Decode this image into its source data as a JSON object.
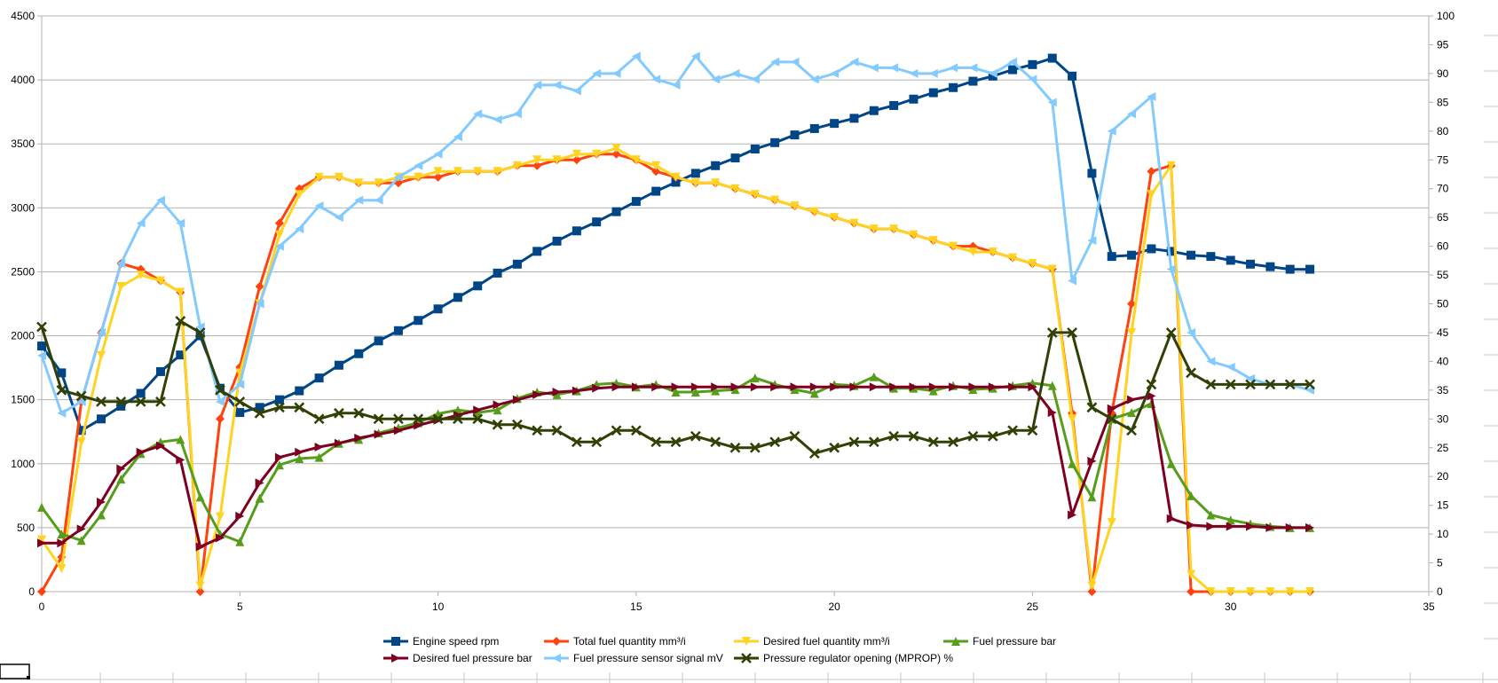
{
  "chart_data": {
    "type": "line",
    "title": "",
    "xlabel": "",
    "ylabel": "",
    "y2label": "",
    "xlim": [
      0,
      35
    ],
    "ylim": [
      0,
      4500
    ],
    "y2lim": [
      0,
      100
    ],
    "grid": true,
    "legend_position": "bottom",
    "x_ticks": [
      0,
      5,
      10,
      15,
      20,
      25,
      30,
      35
    ],
    "y_ticks": [
      0,
      500,
      1000,
      1500,
      2000,
      2500,
      3000,
      3500,
      4000,
      4500
    ],
    "y2_ticks": [
      0,
      5,
      10,
      15,
      20,
      25,
      30,
      35,
      40,
      45,
      50,
      55,
      60,
      65,
      70,
      75,
      80,
      85,
      90,
      95,
      100
    ],
    "series": [
      {
        "name": "Engine speed rpm",
        "axis": "left",
        "color": "#004586",
        "marker": "square",
        "x": [
          0,
          0.5,
          1,
          1.5,
          2,
          2.5,
          3,
          3.5,
          4,
          4.5,
          5,
          5.5,
          6,
          6.5,
          7,
          7.5,
          8,
          8.5,
          9,
          9.5,
          10,
          10.5,
          11,
          11.5,
          12,
          12.5,
          13,
          13.5,
          14,
          14.5,
          15,
          15.5,
          16,
          16.5,
          17,
          17.5,
          18,
          18.5,
          19,
          19.5,
          20,
          20.5,
          21,
          21.5,
          22,
          22.5,
          23,
          23.5,
          24,
          24.5,
          25,
          25.5,
          26,
          26.5,
          27,
          27.5,
          28,
          28.5,
          29,
          29.5,
          30,
          30.5,
          31,
          31.5,
          32
        ],
        "values": [
          1920,
          1710,
          1260,
          1350,
          1450,
          1550,
          1720,
          1850,
          2000,
          1590,
          1400,
          1440,
          1500,
          1570,
          1670,
          1770,
          1860,
          1960,
          2040,
          2120,
          2210,
          2300,
          2390,
          2490,
          2560,
          2660,
          2740,
          2820,
          2890,
          2970,
          3050,
          3130,
          3200,
          3270,
          3330,
          3390,
          3460,
          3510,
          3570,
          3620,
          3660,
          3700,
          3760,
          3800,
          3850,
          3900,
          3940,
          3990,
          4030,
          4080,
          4120,
          4170,
          4030,
          3270,
          2620,
          2630,
          2680,
          2660,
          2630,
          2620,
          2590,
          2560,
          2540,
          2520,
          2520
        ]
      },
      {
        "name": "Total fuel quantity mm³/i",
        "axis": "right",
        "color": "#ff420e",
        "marker": "diamond",
        "x": [
          0,
          0.5,
          1,
          1.5,
          2,
          2.5,
          3,
          3.5,
          4,
          4.5,
          5,
          5.5,
          6,
          6.5,
          7,
          7.5,
          8,
          8.5,
          9,
          9.5,
          10,
          10.5,
          11,
          11.5,
          12,
          12.5,
          13,
          13.5,
          14,
          14.5,
          15,
          15.5,
          16,
          16.5,
          17,
          17.5,
          18,
          18.5,
          19,
          19.5,
          20,
          20.5,
          21,
          21.5,
          22,
          22.5,
          23,
          23.5,
          24,
          24.5,
          25,
          25.5,
          26,
          26.5,
          27,
          27.5,
          28,
          28.5,
          29,
          29.5,
          30,
          30.5,
          31,
          31.5,
          32
        ],
        "values": [
          0,
          6,
          33,
          45,
          57,
          56,
          54,
          52,
          0,
          30,
          39,
          53,
          64,
          70,
          72,
          72,
          71,
          71,
          71,
          72,
          72,
          73,
          73,
          73,
          74,
          74,
          75,
          75,
          76,
          76,
          75,
          73,
          72,
          71,
          71,
          70,
          69,
          68,
          67,
          66,
          65,
          64,
          63,
          63,
          62,
          61,
          60,
          60,
          59,
          58,
          57,
          56,
          31,
          0,
          31,
          50,
          73,
          74,
          0,
          0,
          0,
          0,
          0,
          0,
          0
        ]
      },
      {
        "name": "Desired fuel quantity mm³/i",
        "axis": "right",
        "color": "#ffd320",
        "marker": "triangle-down",
        "x": [
          0,
          0.5,
          1,
          1.5,
          2,
          2.5,
          3,
          3.5,
          4,
          4.5,
          5,
          5.5,
          6,
          6.5,
          7,
          7.5,
          8,
          8.5,
          9,
          9.5,
          10,
          10.5,
          11,
          11.5,
          12,
          12.5,
          13,
          13.5,
          14,
          14.5,
          15,
          15.5,
          16,
          16.5,
          17,
          17.5,
          18,
          18.5,
          19,
          19.5,
          20,
          20.5,
          21,
          21.5,
          22,
          22.5,
          23,
          23.5,
          24,
          24.5,
          25,
          25.5,
          26,
          26.5,
          27,
          27.5,
          28,
          28.5,
          29,
          29.5,
          30,
          30.5,
          31,
          31.5,
          32
        ],
        "values": [
          9,
          4,
          26,
          41,
          53,
          55,
          54,
          52,
          1,
          13,
          38,
          50,
          62,
          69,
          72,
          72,
          71,
          71,
          72,
          72,
          73,
          73,
          73,
          73,
          74,
          75,
          75,
          76,
          76,
          77,
          75,
          74,
          72,
          71,
          71,
          70,
          69,
          68,
          67,
          66,
          65,
          64,
          63,
          63,
          62,
          61,
          60,
          59,
          59,
          58,
          57,
          56,
          30,
          1,
          12,
          45,
          69,
          74,
          3,
          0,
          0,
          0,
          0,
          0,
          0
        ]
      },
      {
        "name": "Fuel pressure bar",
        "axis": "left",
        "color": "#579d1c",
        "marker": "triangle-up",
        "x": [
          0,
          0.5,
          1,
          1.5,
          2,
          2.5,
          3,
          3.5,
          4,
          4.5,
          5,
          5.5,
          6,
          6.5,
          7,
          7.5,
          8,
          8.5,
          9,
          9.5,
          10,
          10.5,
          11,
          11.5,
          12,
          12.5,
          13,
          13.5,
          14,
          14.5,
          15,
          15.5,
          16,
          16.5,
          17,
          17.5,
          18,
          18.5,
          19,
          19.5,
          20,
          20.5,
          21,
          21.5,
          22,
          22.5,
          23,
          23.5,
          24,
          24.5,
          25,
          25.5,
          26,
          26.5,
          27,
          27.5,
          28,
          28.5,
          29,
          29.5,
          30,
          30.5,
          31,
          31.5,
          32
        ],
        "values": [
          660,
          450,
          400,
          600,
          880,
          1080,
          1170,
          1190,
          740,
          450,
          390,
          730,
          990,
          1040,
          1050,
          1160,
          1190,
          1240,
          1280,
          1320,
          1390,
          1420,
          1400,
          1420,
          1510,
          1560,
          1540,
          1570,
          1620,
          1630,
          1600,
          1620,
          1560,
          1560,
          1570,
          1580,
          1670,
          1620,
          1580,
          1550,
          1620,
          1610,
          1680,
          1590,
          1590,
          1570,
          1610,
          1580,
          1590,
          1610,
          1630,
          1610,
          1000,
          740,
          1350,
          1400,
          1470,
          1000,
          750,
          600,
          560,
          530,
          510,
          500,
          500
        ]
      },
      {
        "name": "Desired fuel pressure bar",
        "axis": "left",
        "color": "#7e0021",
        "marker": "triangle-right",
        "x": [
          0,
          0.5,
          1,
          1.5,
          2,
          2.5,
          3,
          3.5,
          4,
          4.5,
          5,
          5.5,
          6,
          6.5,
          7,
          7.5,
          8,
          8.5,
          9,
          9.5,
          10,
          10.5,
          11,
          11.5,
          12,
          12.5,
          13,
          13.5,
          14,
          14.5,
          15,
          15.5,
          16,
          16.5,
          17,
          17.5,
          18,
          18.5,
          19,
          19.5,
          20,
          20.5,
          21,
          21.5,
          22,
          22.5,
          23,
          23.5,
          24,
          24.5,
          25,
          25.5,
          26,
          26.5,
          27,
          27.5,
          28,
          28.5,
          29,
          29.5,
          30,
          30.5,
          31,
          31.5,
          32
        ],
        "values": [
          380,
          380,
          490,
          700,
          960,
          1090,
          1140,
          1030,
          350,
          420,
          590,
          850,
          1050,
          1090,
          1130,
          1160,
          1200,
          1230,
          1260,
          1300,
          1340,
          1380,
          1420,
          1460,
          1500,
          1540,
          1560,
          1570,
          1590,
          1600,
          1600,
          1600,
          1600,
          1600,
          1600,
          1600,
          1600,
          1600,
          1600,
          1600,
          1600,
          1600,
          1600,
          1600,
          1600,
          1600,
          1600,
          1600,
          1600,
          1600,
          1600,
          1400,
          600,
          1020,
          1430,
          1500,
          1530,
          570,
          520,
          510,
          510,
          510,
          500,
          500,
          500
        ]
      },
      {
        "name": "Fuel pressure sensor signal mV",
        "axis": "right",
        "color": "#83caff",
        "marker": "triangle-left",
        "x": [
          0,
          0.5,
          1,
          1.5,
          2,
          2.5,
          3,
          3.5,
          4,
          4.5,
          5,
          5.5,
          6,
          6.5,
          7,
          7.5,
          8,
          8.5,
          9,
          9.5,
          10,
          10.5,
          11,
          11.5,
          12,
          12.5,
          13,
          13.5,
          14,
          14.5,
          15,
          15.5,
          16,
          16.5,
          17,
          17.5,
          18,
          18.5,
          19,
          19.5,
          20,
          20.5,
          21,
          21.5,
          22,
          22.5,
          23,
          23.5,
          24,
          24.5,
          25,
          25.5,
          26,
          26.5,
          27,
          27.5,
          28,
          28.5,
          29,
          29.5,
          30,
          30.5,
          31,
          31.5,
          32
        ],
        "values": [
          41,
          31,
          33,
          45,
          57,
          64,
          68,
          64,
          46,
          33,
          36,
          50,
          60,
          63,
          67,
          65,
          68,
          68,
          72,
          74,
          76,
          79,
          83,
          82,
          83,
          88,
          88,
          87,
          90,
          90,
          93,
          89,
          88,
          93,
          89,
          90,
          89,
          92,
          92,
          89,
          90,
          92,
          91,
          91,
          90,
          90,
          91,
          91,
          90,
          92,
          89,
          85,
          54,
          61,
          80,
          83,
          86,
          56,
          45,
          40,
          39,
          37,
          36,
          36,
          35
        ]
      },
      {
        "name": "Pressure regulator opening (MPROP) %",
        "axis": "right",
        "color": "#314004",
        "marker": "x",
        "x": [
          0,
          0.5,
          1,
          1.5,
          2,
          2.5,
          3,
          3.5,
          4,
          4.5,
          5,
          5.5,
          6,
          6.5,
          7,
          7.5,
          8,
          8.5,
          9,
          9.5,
          10,
          10.5,
          11,
          11.5,
          12,
          12.5,
          13,
          13.5,
          14,
          14.5,
          15,
          15.5,
          16,
          16.5,
          17,
          17.5,
          18,
          18.5,
          19,
          19.5,
          20,
          20.5,
          21,
          21.5,
          22,
          22.5,
          23,
          23.5,
          24,
          24.5,
          25,
          25.5,
          26,
          26.5,
          27,
          27.5,
          28,
          28.5,
          29,
          29.5,
          30,
          30.5,
          31,
          31.5,
          32
        ],
        "values": [
          46,
          35,
          34,
          33,
          33,
          33,
          33,
          47,
          45,
          35,
          33,
          31,
          32,
          32,
          30,
          31,
          31,
          30,
          30,
          30,
          30,
          30,
          30,
          29,
          29,
          28,
          28,
          26,
          26,
          28,
          28,
          26,
          26,
          27,
          26,
          25,
          25,
          26,
          27,
          24,
          25,
          26,
          26,
          27,
          27,
          26,
          26,
          27,
          27,
          28,
          28,
          45,
          45,
          32,
          30,
          28,
          36,
          45,
          38,
          36,
          36,
          36,
          36,
          36,
          36
        ]
      }
    ]
  }
}
